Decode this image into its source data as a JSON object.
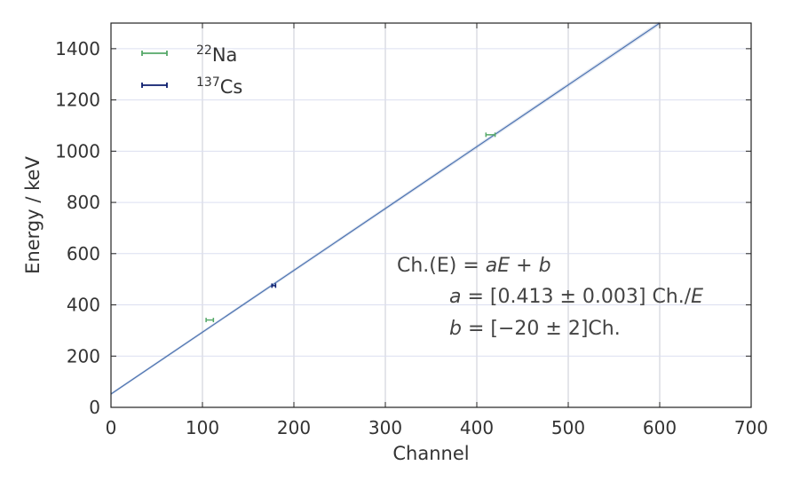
{
  "chart_data": {
    "type": "scatter",
    "xlabel": "Channel",
    "ylabel": "Energy / keV",
    "xlim": [
      0,
      700
    ],
    "ylim": [
      0,
      1500
    ],
    "x_ticks": [
      "0",
      "100",
      "200",
      "300",
      "400",
      "500",
      "600",
      "700"
    ],
    "y_ticks": [
      "0",
      "200",
      "400",
      "600",
      "800",
      "1000",
      "1200",
      "1400"
    ],
    "grid": true,
    "legend_position": "top-left",
    "series": [
      {
        "name": "Na",
        "name_superscript": "22",
        "color": "#55a868",
        "points": [
          {
            "x": 108,
            "y": 341,
            "xerr": 4
          },
          {
            "x": 415,
            "y": 1064,
            "xerr": 5
          }
        ]
      },
      {
        "name": "Cs",
        "name_superscript": "137",
        "color": "#0b1d6e",
        "points": [
          {
            "x": 178,
            "y": 475,
            "xerr": 2
          }
        ]
      }
    ],
    "fit": {
      "color": "#4c72b0",
      "x_start": 0,
      "y_start": 52,
      "x_end": 600,
      "y_end": 1500
    },
    "annotation": {
      "line1": "Ch.(E) = aE + b",
      "line2": "a = [0.413 ± 0.003] Ch./E",
      "line3": "b = [−20 ± 2]Ch."
    }
  }
}
